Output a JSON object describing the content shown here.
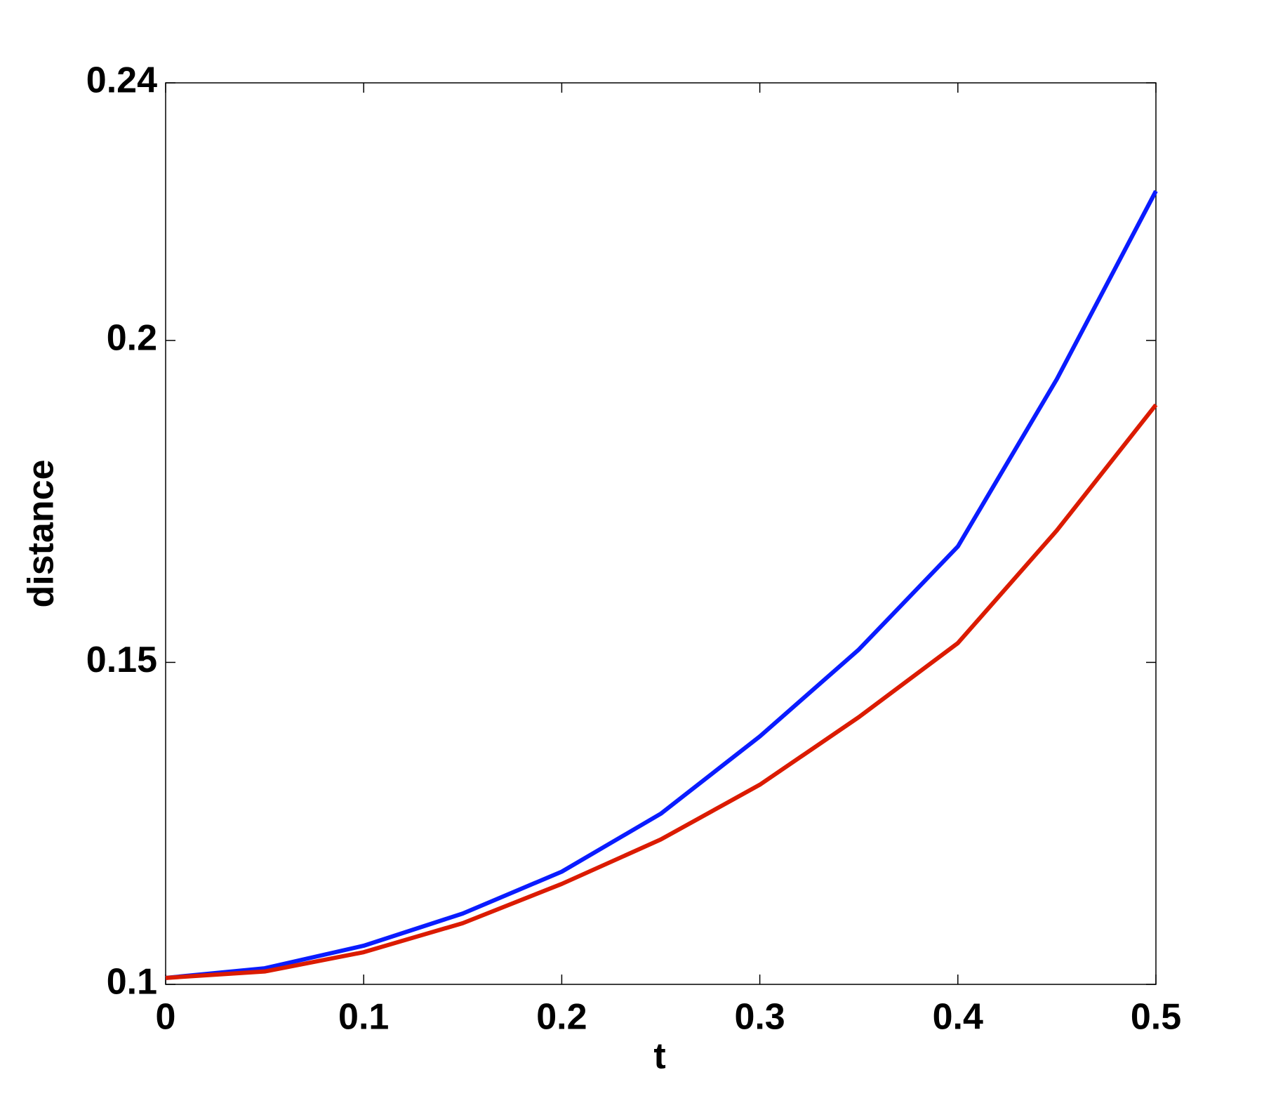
{
  "chart_data": {
    "type": "line",
    "x_label": "t",
    "y_label": "distance",
    "x": [
      0,
      0.05,
      0.1,
      0.15,
      0.2,
      0.25,
      0.3,
      0.35,
      0.4,
      0.45,
      0.5
    ],
    "series": [
      {
        "color": "#0a1cff",
        "values": [
          0.101,
          0.1025,
          0.106,
          0.111,
          0.1175,
          0.1265,
          0.1385,
          0.152,
          0.168,
          0.194,
          0.2232
        ]
      },
      {
        "color": "#db1b00",
        "values": [
          0.101,
          0.102,
          0.105,
          0.1095,
          0.1156,
          0.1225,
          0.131,
          0.1415,
          0.153,
          0.1705,
          0.19
        ]
      }
    ],
    "xlim": [
      0,
      0.5
    ],
    "xticks": [
      0,
      0.1,
      0.2,
      0.3,
      0.4,
      0.5
    ],
    "ylim": [
      0.1,
      0.24
    ],
    "yticks": [
      0.1,
      0.15,
      0.2,
      0.24
    ],
    "grid": false
  }
}
